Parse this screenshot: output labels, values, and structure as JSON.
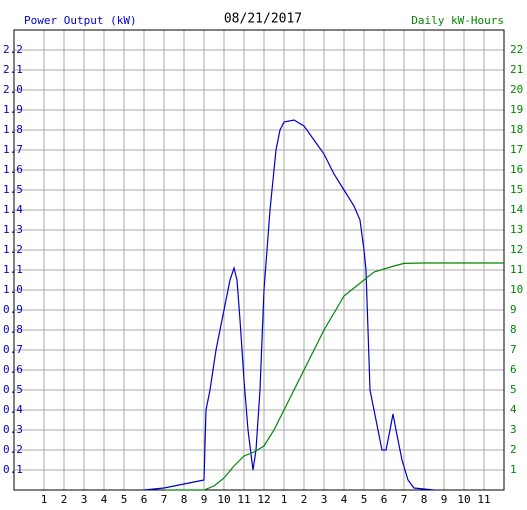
{
  "chart_data": {
    "type": "line",
    "title": "08/21/2017",
    "y_label": "Power Output (kW)",
    "y2_label": "Daily kW-Hours",
    "xlim": [
      -0.5,
      24
    ],
    "xticks": [
      1,
      2,
      3,
      4,
      5,
      6,
      7,
      8,
      9,
      10,
      11,
      12,
      {
        "value": 13,
        "label": "1"
      },
      {
        "value": 14,
        "label": "2"
      },
      {
        "value": 15,
        "label": "3"
      },
      {
        "value": 16,
        "label": "4"
      },
      {
        "value": 17,
        "label": "5"
      },
      {
        "value": 18,
        "label": "6"
      },
      {
        "value": 19,
        "label": "7"
      },
      {
        "value": 20,
        "label": "8"
      },
      {
        "value": 21,
        "label": "9"
      },
      {
        "value": 22,
        "label": "10"
      },
      {
        "value": 23,
        "label": "11"
      }
    ],
    "ylim": [
      0,
      2.3
    ],
    "yticks": [
      0.1,
      0.2,
      0.3,
      0.4,
      0.5,
      0.6,
      0.7,
      0.8,
      0.9,
      {
        "value": 1,
        "label": "1.0"
      },
      1.1,
      1.2,
      1.3,
      1.4,
      1.5,
      1.6,
      1.7,
      1.8,
      1.9,
      {
        "value": 2,
        "label": "2.0"
      },
      2.1,
      2.2
    ],
    "y2lim": [
      0,
      23
    ],
    "y2ticks": [
      1,
      2,
      3,
      4,
      5,
      6,
      7,
      8,
      9,
      10,
      11,
      12,
      13,
      14,
      15,
      16,
      17,
      18,
      19,
      20,
      21,
      22
    ],
    "grid": true,
    "series": [
      {
        "name": "Power Output (kW)",
        "color": "#0000cc",
        "x": [
          6,
          7,
          7.5,
          8,
          8.5,
          9,
          9.1,
          9.3,
          9.6,
          9.9,
          10.1,
          10.3,
          10.5,
          10.65,
          10.8,
          11,
          11.2,
          11.45,
          11.6,
          11.8,
          12,
          12.3,
          12.6,
          12.8,
          13,
          13.5,
          14,
          14.5,
          15,
          15.5,
          16,
          16.5,
          16.8,
          17,
          17.1,
          17.2,
          17.3,
          17.5,
          17.7,
          17.9,
          18.1,
          18.3,
          18.45,
          18.6,
          18.9,
          19.2,
          19.5,
          20.5
        ],
        "values": [
          0,
          0.01,
          0.02,
          0.03,
          0.04,
          0.05,
          0.4,
          0.5,
          0.7,
          0.85,
          0.95,
          1.05,
          1.11,
          1.05,
          0.85,
          0.55,
          0.3,
          0.1,
          0.2,
          0.5,
          1.0,
          1.4,
          1.7,
          1.8,
          1.84,
          1.85,
          1.82,
          1.75,
          1.68,
          1.58,
          1.5,
          1.42,
          1.35,
          1.2,
          1.1,
          0.8,
          0.5,
          0.4,
          0.3,
          0.2,
          0.2,
          0.3,
          0.38,
          0.3,
          0.15,
          0.05,
          0.01,
          0
        ]
      },
      {
        "name": "Daily kW-Hours",
        "color": "#008800",
        "axis": "y2",
        "x": [
          7,
          9,
          9.5,
          10,
          10.5,
          11,
          11.5,
          12,
          12.5,
          13,
          14,
          15,
          16,
          17,
          17.5,
          18,
          18.5,
          19,
          20,
          24
        ],
        "values": [
          0,
          0,
          0.2,
          0.6,
          1.2,
          1.7,
          1.9,
          2.2,
          3,
          4,
          6,
          8,
          9.7,
          10.5,
          10.9,
          11.05,
          11.2,
          11.33,
          11.35,
          11.35
        ]
      }
    ]
  }
}
